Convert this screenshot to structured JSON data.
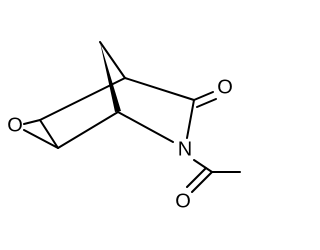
{
  "nodes": [
    {
      "label": "O"
    },
    {
      "label": "O"
    },
    {
      "label": "N"
    },
    {
      "label": "O"
    }
  ]
}
